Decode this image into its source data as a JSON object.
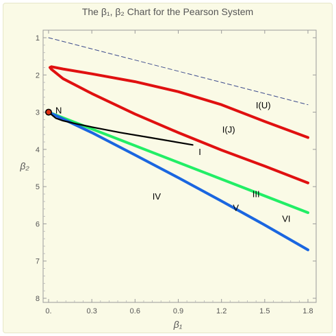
{
  "chart_data": {
    "type": "line",
    "title": "The β₁, β₂ Chart for the Pearson System",
    "xlabel": "β₁",
    "ylabel": "β₂",
    "xlim": [
      0,
      1.8
    ],
    "ylim": [
      8,
      1
    ],
    "y_reversed": true,
    "x_ticks": [
      "0.",
      "0.3",
      "0.6",
      "0.9",
      "1.2",
      "1.5",
      "1.8"
    ],
    "x_tick_values": [
      0,
      0.3,
      0.6,
      0.9,
      1.2,
      1.5,
      1.8
    ],
    "y_ticks": [
      "1",
      "2",
      "3",
      "4",
      "5",
      "6",
      "7",
      "8"
    ],
    "y_tick_values": [
      1,
      2,
      3,
      4,
      5,
      6,
      7,
      8
    ],
    "grid": false,
    "series": [
      {
        "id": "limit-line",
        "color": "#3c4a8c",
        "style": "dashed",
        "points": [
          [
            0,
            1
          ],
          [
            1.8,
            2.8
          ]
        ]
      },
      {
        "id": "red-upper",
        "color": "#e01010",
        "style": "solid",
        "points": [
          [
            1.8,
            3.68
          ],
          [
            1.5,
            3.25
          ],
          [
            1.2,
            2.8
          ],
          [
            0.9,
            2.45
          ],
          [
            0.6,
            2.18
          ],
          [
            0.3,
            1.97
          ],
          [
            0.1,
            1.84
          ],
          [
            0.02,
            1.78
          ],
          [
            0.01,
            1.8
          ]
        ]
      },
      {
        "id": "red-lower",
        "color": "#e01010",
        "style": "solid",
        "points": [
          [
            0.01,
            1.8
          ],
          [
            0.02,
            1.85
          ],
          [
            0.1,
            2.1
          ],
          [
            0.3,
            2.5
          ],
          [
            0.6,
            3.05
          ],
          [
            0.9,
            3.55
          ],
          [
            1.2,
            4.02
          ],
          [
            1.5,
            4.45
          ],
          [
            1.8,
            4.9
          ]
        ]
      },
      {
        "id": "green-type-III",
        "color": "#22ee66",
        "style": "solid",
        "points": [
          [
            0,
            3
          ],
          [
            1.8,
            5.7
          ]
        ]
      },
      {
        "id": "blue-type-V",
        "color": "#1a66e0",
        "style": "solid",
        "points": [
          [
            0,
            3
          ],
          [
            0.3,
            3.55
          ],
          [
            0.6,
            4.15
          ],
          [
            0.9,
            4.76
          ],
          [
            1.2,
            5.39
          ],
          [
            1.5,
            6.03
          ],
          [
            1.8,
            6.7
          ]
        ]
      },
      {
        "id": "black-curve",
        "color": "#000000",
        "style": "solid",
        "points": [
          [
            0,
            3
          ],
          [
            0.05,
            3.16
          ],
          [
            0.1,
            3.23
          ],
          [
            0.2,
            3.32
          ],
          [
            0.3,
            3.4
          ],
          [
            0.5,
            3.55
          ],
          [
            0.7,
            3.68
          ],
          [
            1.0,
            3.88
          ]
        ]
      }
    ],
    "point": {
      "label": "N",
      "x": 0,
      "y": 3,
      "color": "#e03010"
    },
    "region_labels": [
      {
        "text": "I(U)",
        "x": 1.49,
        "y": 2.9
      },
      {
        "text": "I(J)",
        "x": 1.25,
        "y": 3.55
      },
      {
        "text": "I",
        "x": 1.05,
        "y": 4.15
      },
      {
        "text": "III",
        "x": 1.44,
        "y": 5.28
      },
      {
        "text": "IV",
        "x": 0.75,
        "y": 5.35
      },
      {
        "text": "V",
        "x": 1.3,
        "y": 5.65
      },
      {
        "text": "VI",
        "x": 1.65,
        "y": 5.95
      }
    ]
  }
}
